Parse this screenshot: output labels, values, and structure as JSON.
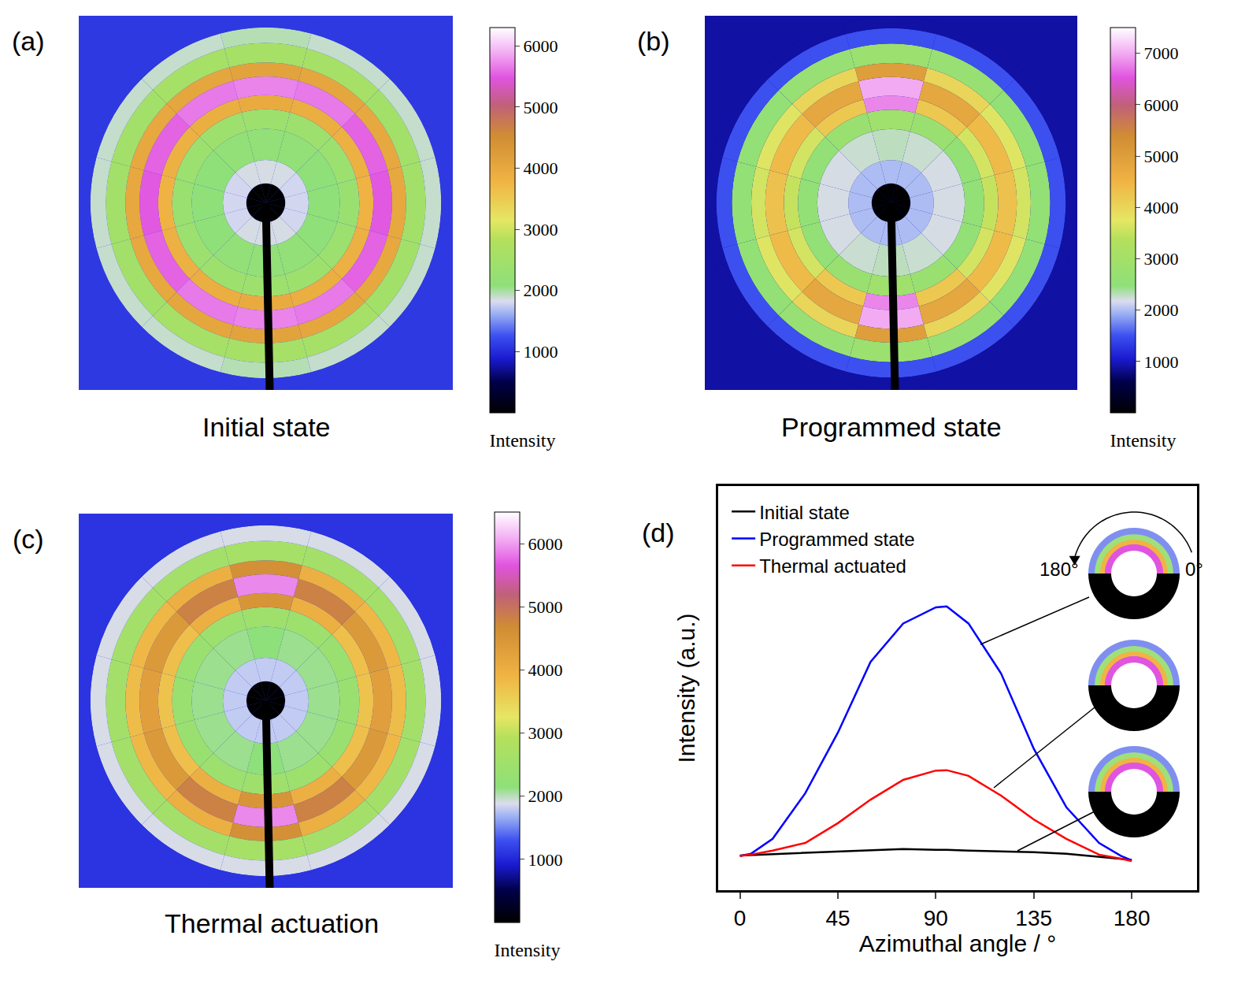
{
  "chart_data": [
    {
      "panel": "(a)",
      "type": "polar_heatmap",
      "title": "Initial state",
      "radius_edges": [
        0,
        25,
        55,
        95,
        120,
        138,
        162,
        180,
        205,
        225,
        240
      ],
      "rlim": [
        0,
        240
      ],
      "theta": [
        0,
        30,
        60,
        90,
        120,
        150,
        180,
        210,
        240,
        270,
        300,
        330
      ],
      "cells": [
        [
          0,
          0,
          0,
          0,
          0,
          0,
          0,
          0,
          0,
          0,
          0,
          0
        ],
        [
          1800,
          1800,
          1850,
          1850,
          1850,
          1800,
          1800,
          1800,
          1850,
          1850,
          1850,
          1800
        ],
        [
          2100,
          2100,
          2150,
          2150,
          2150,
          2100,
          2100,
          2100,
          2150,
          2150,
          2150,
          2100
        ],
        [
          2300,
          2350,
          2400,
          2400,
          2400,
          2350,
          2300,
          2350,
          2400,
          2400,
          2400,
          2350
        ],
        [
          3800,
          3850,
          3900,
          3950,
          3900,
          3850,
          3800,
          3850,
          3900,
          3950,
          3900,
          3850
        ],
        [
          5500,
          5550,
          5650,
          5700,
          5650,
          5550,
          5500,
          5550,
          5650,
          5700,
          5650,
          5550
        ],
        [
          4000,
          4000,
          4050,
          4100,
          4050,
          4000,
          4000,
          4000,
          4050,
          4100,
          4050,
          4000
        ],
        [
          2500,
          2500,
          2550,
          2550,
          2550,
          2500,
          2500,
          2500,
          2550,
          2550,
          2550,
          2500
        ],
        [
          1900,
          1900,
          1900,
          1950,
          1900,
          1900,
          1900,
          1900,
          1900,
          1950,
          1900,
          1900
        ],
        [
          1100,
          1100,
          1100,
          1100,
          1100,
          1100,
          1100,
          1100,
          1100,
          1100,
          1100,
          1100
        ]
      ],
      "colorbar": {
        "title": "Intensity",
        "range": [
          0,
          6300
        ],
        "ticks": [
          1000,
          2000,
          3000,
          4000,
          5000,
          6000
        ]
      }
    },
    {
      "panel": "(b)",
      "type": "polar_heatmap",
      "title": "Programmed state",
      "radius_edges": [
        0,
        25,
        55,
        95,
        120,
        138,
        162,
        180,
        205,
        225,
        240
      ],
      "rlim": [
        0,
        240
      ],
      "theta": [
        0,
        30,
        60,
        90,
        120,
        150,
        180,
        210,
        240,
        270,
        300,
        330
      ],
      "cells": [
        [
          0,
          0,
          0,
          0,
          0,
          0,
          0,
          0,
          0,
          0,
          0,
          0
        ],
        [
          2000,
          2000,
          2000,
          2000,
          2000,
          2000,
          2000,
          2000,
          2000,
          2000,
          2000,
          2000
        ],
        [
          2200,
          2200,
          2250,
          2300,
          2250,
          2200,
          2200,
          2200,
          2250,
          2300,
          2250,
          2200
        ],
        [
          2600,
          2600,
          2750,
          2900,
          2750,
          2600,
          2600,
          2600,
          2750,
          2900,
          2750,
          2600
        ],
        [
          3500,
          3600,
          4200,
          6800,
          4200,
          3600,
          3500,
          3600,
          4200,
          6800,
          4200,
          3600
        ],
        [
          4300,
          4400,
          4800,
          7000,
          4800,
          4400,
          4300,
          4400,
          4800,
          7000,
          4800,
          4400
        ],
        [
          3600,
          3700,
          4000,
          5000,
          4000,
          3700,
          3600,
          3700,
          4000,
          5000,
          4000,
          3700
        ],
        [
          2600,
          2600,
          2700,
          2800,
          2700,
          2600,
          2600,
          2600,
          2700,
          2800,
          2700,
          2600
        ],
        [
          1500,
          1500,
          1500,
          1500,
          1500,
          1500,
          1500,
          1500,
          1500,
          1500,
          1500,
          1500
        ],
        [
          900,
          900,
          900,
          900,
          900,
          900,
          900,
          900,
          900,
          900,
          900,
          900
        ]
      ],
      "colorbar": {
        "title": "Intensity",
        "range": [
          0,
          7500
        ],
        "ticks": [
          1000,
          2000,
          3000,
          4000,
          5000,
          6000,
          7000
        ]
      }
    },
    {
      "panel": "(c)",
      "type": "polar_heatmap",
      "title": "Thermal actuation",
      "radius_edges": [
        0,
        25,
        55,
        95,
        120,
        138,
        162,
        180,
        205,
        225,
        240
      ],
      "rlim": [
        0,
        240
      ],
      "theta": [
        0,
        30,
        60,
        90,
        120,
        150,
        180,
        210,
        240,
        270,
        300,
        330
      ],
      "cells": [
        [
          0,
          0,
          0,
          0,
          0,
          0,
          0,
          0,
          0,
          0,
          0,
          0
        ],
        [
          1800,
          1800,
          1800,
          1800,
          1800,
          1800,
          1800,
          1800,
          1800,
          1800,
          1800,
          1800
        ],
        [
          2100,
          2100,
          2100,
          2150,
          2100,
          2100,
          2100,
          2100,
          2100,
          2150,
          2100,
          2100
        ],
        [
          2400,
          2400,
          2450,
          2500,
          2450,
          2400,
          2400,
          2400,
          2450,
          2500,
          2450,
          2400
        ],
        [
          3700,
          3750,
          4000,
          4500,
          4000,
          3750,
          3700,
          3750,
          4000,
          4500,
          4000,
          3750
        ],
        [
          4300,
          4400,
          4800,
          5900,
          4800,
          4400,
          4300,
          4400,
          4800,
          5900,
          4800,
          4400
        ],
        [
          3800,
          3850,
          4000,
          4600,
          4000,
          3850,
          3800,
          3850,
          4000,
          4600,
          4000,
          3850
        ],
        [
          2600,
          2600,
          2600,
          2650,
          2600,
          2600,
          2600,
          2600,
          2600,
          2650,
          2600,
          2600
        ],
        [
          1900,
          1900,
          1900,
          1900,
          1900,
          1900,
          1900,
          1900,
          1900,
          1900,
          1900,
          1900
        ],
        [
          1100,
          1100,
          1100,
          1100,
          1100,
          1100,
          1100,
          1100,
          1100,
          1100,
          1100,
          1100
        ]
      ],
      "colorbar": {
        "title": "Intensity",
        "range": [
          0,
          6500
        ],
        "ticks": [
          1000,
          2000,
          3000,
          4000,
          5000,
          6000
        ]
      }
    },
    {
      "panel": "(d)",
      "type": "line",
      "xlabel": "Azimuthal angle / °",
      "ylabel": "Intensity (a.u.)",
      "x": [
        0,
        5,
        15,
        30,
        45,
        60,
        75,
        90,
        95,
        105,
        120,
        135,
        150,
        165,
        175,
        180
      ],
      "series": [
        {
          "name": "Initial state",
          "color": "#000000",
          "values": [
            8.6,
            8.7,
            8.9,
            9.2,
            9.5,
            9.9,
            10.2,
            10.0,
            10.0,
            9.8,
            9.6,
            9.4,
            9.0,
            8.3,
            7.8,
            7.5
          ]
        },
        {
          "name": "Programmed state",
          "color": "#0000ff",
          "values": [
            8.5,
            9.0,
            12.7,
            24,
            39,
            56.5,
            66,
            70,
            70.2,
            66,
            53.6,
            35,
            20.5,
            11.7,
            8.5,
            7.4
          ]
        },
        {
          "name": "Thermal actuated",
          "color": "#ff0000",
          "values": [
            8.5,
            8.8,
            9.8,
            11.7,
            16.6,
            22.4,
            27.3,
            29.6,
            29.7,
            28.3,
            23.4,
            17.5,
            12.7,
            8.8,
            7.8,
            7.2
          ]
        }
      ],
      "xlim": [
        -10,
        210
      ],
      "xticks": [
        0,
        45,
        90,
        135,
        180
      ],
      "ylim": [
        0,
        100
      ],
      "tick_labels": "x",
      "legend": "upper left",
      "annotations": [
        "180°",
        "0°"
      ]
    }
  ]
}
